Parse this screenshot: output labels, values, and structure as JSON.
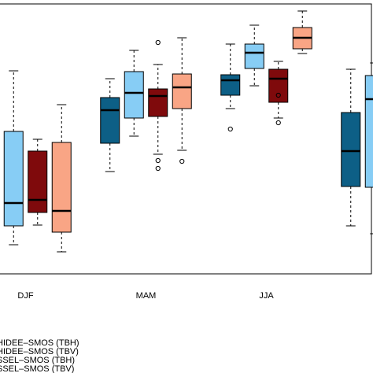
{
  "chart_data": {
    "type": "box",
    "categories": [
      "DJF",
      "MAM",
      "JJA",
      null
    ],
    "ylim": [
      0,
      343
    ],
    "series": [
      {
        "name": "HIDEE–SMOS (TBH)",
        "color": "#0d5f86",
        "max": [
          null,
          248,
          292,
          260
        ],
        "q3": [
          null,
          224,
          253,
          205
        ],
        "median": [
          null,
          208,
          246,
          156
        ],
        "q1": [
          null,
          166,
          227,
          111
        ],
        "min": [
          null,
          130,
          210,
          61
        ],
        "outliers": [
          [],
          [],
          [
            184
          ],
          []
        ]
      },
      {
        "name": "HIDEE–SMOS (TBV)",
        "color": "#87cdf5",
        "max": [
          258,
          284,
          316,
          268
        ],
        "q3": [
          181,
          257,
          292,
          252
        ],
        "median": [
          90,
          230,
          281,
          222
        ],
        "q1": [
          61,
          198,
          261,
          110
        ],
        "min": [
          37,
          175,
          239,
          51
        ],
        "outliers": [
          [],
          [],
          [],
          []
        ]
      },
      {
        "name": "SSEL–SMOS (TBH)",
        "color": "#7f0a0c",
        "max": [
          171,
          266,
          270,
          null
        ],
        "q3": [
          156,
          235,
          260,
          null
        ],
        "median": [
          94,
          226,
          248,
          null
        ],
        "q1": [
          78,
          200,
          218,
          null
        ],
        "min": [
          62,
          152,
          198,
          null
        ],
        "outliers": [
          [],
          [
            294,
            144,
            134
          ],
          [
            227,
            192
          ],
          []
        ]
      },
      {
        "name": "SSEL–SMOS (TBV)",
        "color": "#f9a585",
        "max": [
          215,
          300,
          334,
          null
        ],
        "q3": [
          167,
          254,
          313,
          null
        ],
        "median": [
          80,
          237,
          300,
          null
        ],
        "q1": [
          53,
          210,
          286,
          null
        ],
        "min": [
          28,
          157,
          280,
          null
        ],
        "outliers": [
          [],
          [
            143
          ],
          [],
          []
        ]
      }
    ]
  }
}
